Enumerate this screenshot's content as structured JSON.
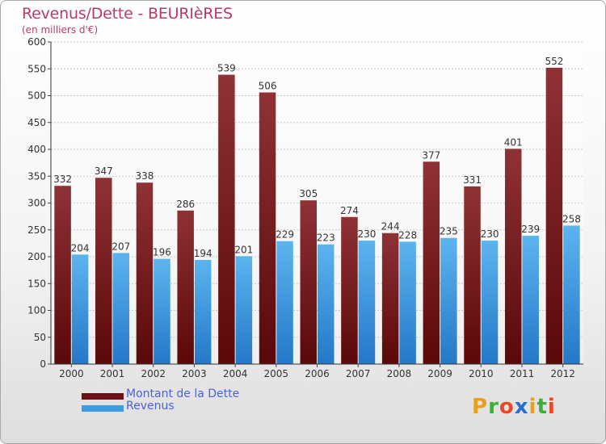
{
  "header": {
    "title": "Revenus/Dette - BEURIèRES",
    "subtitle": "(en milliers d'€)"
  },
  "logo": {
    "text": "Proxiti",
    "letters": [
      "P",
      "r",
      "o",
      "x",
      "i",
      "t",
      "i"
    ],
    "colors": [
      "#e8a020",
      "#3cae3c",
      "#e84828",
      "#2a6fd0",
      "#e8a020",
      "#3cae3c",
      "#e84828"
    ]
  },
  "chart_data": {
    "type": "bar",
    "title": "Revenus/Dette - BEURIèRES",
    "subtitle": "(en milliers d'€)",
    "categories": [
      "2000",
      "2001",
      "2002",
      "2003",
      "2004",
      "2005",
      "2006",
      "2007",
      "2008",
      "2009",
      "2010",
      "2011",
      "2012"
    ],
    "series": [
      {
        "name": "Montant de la Dette",
        "values": [
          332,
          347,
          338,
          286,
          539,
          506,
          305,
          274,
          244,
          377,
          331,
          401,
          552
        ],
        "color": "#7a1e22"
      },
      {
        "name": "Revenus",
        "values": [
          204,
          207,
          196,
          194,
          201,
          229,
          223,
          230,
          228,
          235,
          230,
          239,
          258
        ],
        "color": "#3d9de0"
      }
    ],
    "ylim": [
      0,
      600
    ],
    "yticks": [
      0,
      50,
      100,
      150,
      200,
      250,
      300,
      350,
      400,
      450,
      500,
      550,
      600
    ],
    "grid": true,
    "legend_position": "bottom-left",
    "data_labels": true
  }
}
